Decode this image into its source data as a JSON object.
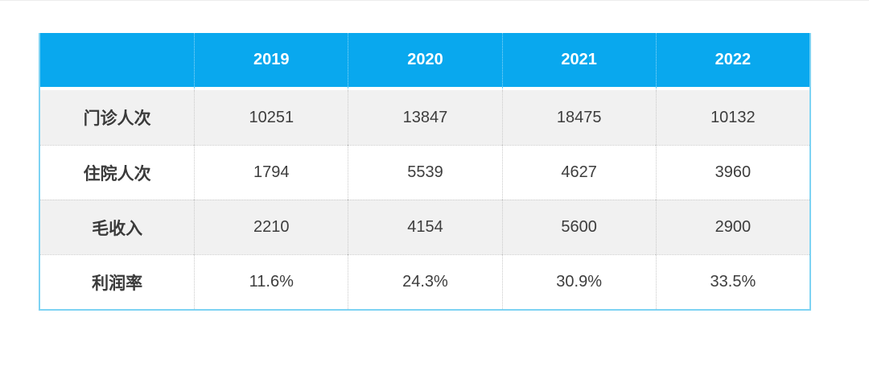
{
  "chart_data": {
    "type": "table",
    "columns": [
      "",
      "2019",
      "2020",
      "2021",
      "2022"
    ],
    "rows": [
      {
        "label": "门诊人次",
        "values": [
          "10251",
          "13847",
          "18475",
          "10132"
        ]
      },
      {
        "label": "住院人次",
        "values": [
          "1794",
          "5539",
          "4627",
          "3960"
        ]
      },
      {
        "label": "毛收入",
        "values": [
          "2210",
          "4154",
          "5600",
          "2900"
        ]
      },
      {
        "label": "利润率",
        "values": [
          "11.6%",
          "24.3%",
          "30.9%",
          "33.5%"
        ]
      }
    ],
    "layout": {
      "header_position": "top",
      "row_striping": "odd-rows-gray",
      "grid": "dotted"
    },
    "colors": {
      "header_bg": "#09a8ee",
      "header_text": "#ffffff",
      "stripe_bg": "#f1f1f1",
      "row_bg": "#ffffff",
      "text": "#3d3d3d",
      "dotted_divider": "#c9c9c9",
      "outer_border": "#7ed3f3"
    }
  }
}
